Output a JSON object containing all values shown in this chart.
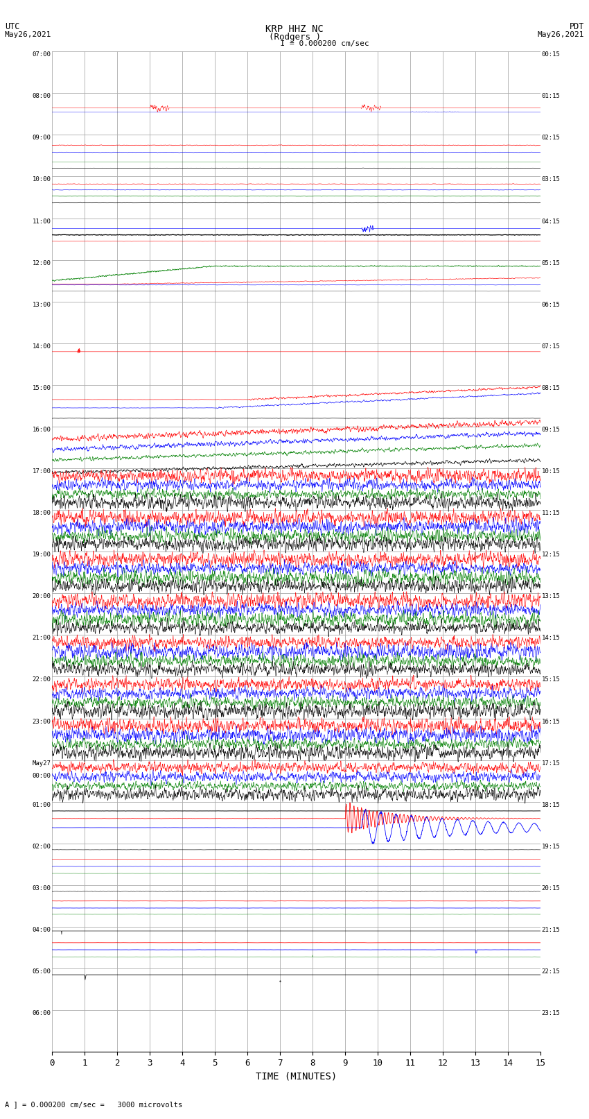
{
  "title_line1": "KRP HHZ NC",
  "title_line2": "(Rodgers )",
  "scale_label": "  I = 0.000200 cm/sec",
  "left_label_top": "UTC",
  "left_label_bot": "May26,2021",
  "right_label_top": "PDT",
  "right_label_bot": "May26,2021",
  "bottom_label": "TIME (MINUTES)",
  "bottom_note": "A ] = 0.000200 cm/sec =   3000 microvolts",
  "xlabel_ticks": [
    0,
    1,
    2,
    3,
    4,
    5,
    6,
    7,
    8,
    9,
    10,
    11,
    12,
    13,
    14,
    15
  ],
  "time_minutes": 15,
  "num_rows": 24,
  "utc_labels": [
    "07:00",
    "08:00",
    "09:00",
    "10:00",
    "11:00",
    "12:00",
    "13:00",
    "14:00",
    "15:00",
    "16:00",
    "17:00",
    "18:00",
    "19:00",
    "20:00",
    "21:00",
    "22:00",
    "23:00",
    "May27\n00:00",
    "01:00",
    "02:00",
    "03:00",
    "04:00",
    "05:00",
    "06:00"
  ],
  "pdt_labels": [
    "00:15",
    "01:15",
    "02:15",
    "03:15",
    "04:15",
    "05:15",
    "06:15",
    "07:15",
    "08:15",
    "09:15",
    "10:15",
    "11:15",
    "12:15",
    "13:15",
    "14:15",
    "15:15",
    "16:15",
    "17:15",
    "18:15",
    "19:15",
    "20:15",
    "21:15",
    "22:15",
    "23:15"
  ],
  "background_color": "#ffffff",
  "grid_color": "#aaaaaa",
  "trace_colors_active": [
    "red",
    "blue",
    "green",
    "black"
  ],
  "lw_thin": 0.4,
  "lw_thick": 0.7
}
